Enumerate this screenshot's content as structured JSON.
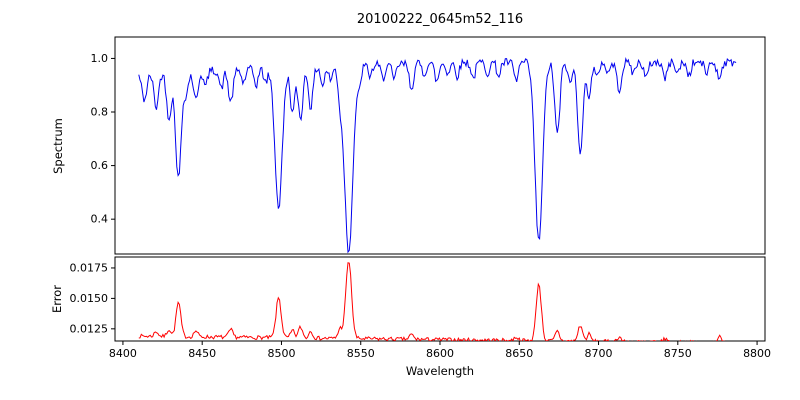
{
  "figure": {
    "title": "20100222_0645m52_116",
    "background": "#ffffff"
  },
  "x_axis": {
    "label": "Wavelength",
    "ticks": [
      8400,
      8450,
      8500,
      8550,
      8600,
      8650,
      8700,
      8750,
      8800
    ],
    "xlim": [
      8395,
      8805
    ]
  },
  "chart_data": [
    {
      "type": "line",
      "name": "spectrum",
      "ylabel": "Spectrum",
      "line_color": "#0000ee",
      "xlim": [
        8395,
        8805
      ],
      "x_range": [
        8410,
        8787
      ],
      "ylim": [
        0.27,
        1.08
      ],
      "yticks": [
        1.0,
        0.8,
        0.6,
        0.4
      ],
      "ytick_labels": [
        "1.0",
        "0.8",
        "0.6",
        "0.4"
      ],
      "grid": false,
      "legend": "none",
      "continuum": {
        "start": 0.945,
        "slope_per_angstrom": 0.0002,
        "max": 0.985
      },
      "noise_amplitude": 0.016,
      "sample_step": 0.8,
      "seed": 42,
      "absorption_lines": [
        {
          "c": 8413.5,
          "d": 0.1,
          "w": 1.6
        },
        {
          "c": 8421.0,
          "d": 0.13,
          "w": 1.5
        },
        {
          "c": 8429.0,
          "d": 0.17,
          "w": 1.5
        },
        {
          "c": 8435.0,
          "d": 0.4,
          "w": 1.8
        },
        {
          "c": 8440.0,
          "d": 0.08,
          "w": 1.3
        },
        {
          "c": 8446.0,
          "d": 0.11,
          "w": 1.4
        },
        {
          "c": 8452.0,
          "d": 0.06,
          "w": 1.2
        },
        {
          "c": 8462.0,
          "d": 0.07,
          "w": 1.2
        },
        {
          "c": 8468.0,
          "d": 0.12,
          "w": 1.5
        },
        {
          "c": 8476.0,
          "d": 0.05,
          "w": 1.2
        },
        {
          "c": 8484.0,
          "d": 0.06,
          "w": 1.2
        },
        {
          "c": 8490.0,
          "d": 0.05,
          "w": 1.2
        },
        {
          "c": 8498.2,
          "d": 0.52,
          "w": 2.3
        },
        {
          "c": 8507.0,
          "d": 0.17,
          "w": 1.4
        },
        {
          "c": 8512.0,
          "d": 0.19,
          "w": 1.5
        },
        {
          "c": 8518.5,
          "d": 0.15,
          "w": 1.4
        },
        {
          "c": 8526.0,
          "d": 0.07,
          "w": 1.2
        },
        {
          "c": 8531.0,
          "d": 0.05,
          "w": 1.2
        },
        {
          "c": 8537.0,
          "d": 0.1,
          "w": 1.3
        },
        {
          "c": 8542.4,
          "d": 0.69,
          "w": 2.6
        },
        {
          "c": 8549.0,
          "d": 0.07,
          "w": 1.2
        },
        {
          "c": 8556.0,
          "d": 0.04,
          "w": 1.2
        },
        {
          "c": 8564.0,
          "d": 0.05,
          "w": 1.2
        },
        {
          "c": 8571.0,
          "d": 0.06,
          "w": 1.2
        },
        {
          "c": 8582.0,
          "d": 0.09,
          "w": 1.4
        },
        {
          "c": 8590.0,
          "d": 0.04,
          "w": 1.2
        },
        {
          "c": 8598.0,
          "d": 0.07,
          "w": 1.3
        },
        {
          "c": 8605.0,
          "d": 0.04,
          "w": 1.2
        },
        {
          "c": 8611.0,
          "d": 0.05,
          "w": 1.2
        },
        {
          "c": 8621.0,
          "d": 0.06,
          "w": 1.3
        },
        {
          "c": 8630.0,
          "d": 0.04,
          "w": 1.2
        },
        {
          "c": 8637.0,
          "d": 0.05,
          "w": 1.2
        },
        {
          "c": 8648.0,
          "d": 0.07,
          "w": 1.3
        },
        {
          "c": 8662.3,
          "d": 0.67,
          "w": 2.4
        },
        {
          "c": 8674.0,
          "d": 0.27,
          "w": 1.6
        },
        {
          "c": 8682.0,
          "d": 0.08,
          "w": 1.3
        },
        {
          "c": 8688.5,
          "d": 0.33,
          "w": 1.7
        },
        {
          "c": 8694.0,
          "d": 0.12,
          "w": 1.4
        },
        {
          "c": 8699.0,
          "d": 0.06,
          "w": 1.2
        },
        {
          "c": 8706.0,
          "d": 0.04,
          "w": 1.2
        },
        {
          "c": 8713.0,
          "d": 0.1,
          "w": 1.5
        },
        {
          "c": 8722.0,
          "d": 0.04,
          "w": 1.2
        },
        {
          "c": 8730.0,
          "d": 0.06,
          "w": 1.3
        },
        {
          "c": 8742.0,
          "d": 0.06,
          "w": 1.3
        },
        {
          "c": 8750.0,
          "d": 0.04,
          "w": 1.2
        },
        {
          "c": 8757.0,
          "d": 0.05,
          "w": 1.2
        },
        {
          "c": 8768.0,
          "d": 0.04,
          "w": 1.2
        },
        {
          "c": 8776.0,
          "d": 0.06,
          "w": 1.3
        }
      ]
    },
    {
      "type": "line",
      "name": "error",
      "ylabel": "Error",
      "line_color": "#ff0000",
      "xlim": [
        8395,
        8805
      ],
      "x_range": [
        8410,
        8787
      ],
      "ylim": [
        0.0115,
        0.0184
      ],
      "yticks": [
        0.0175,
        0.015,
        0.0125
      ],
      "ytick_labels": [
        "0.0175",
        "0.0150",
        "0.0125"
      ],
      "grid": false,
      "legend": "none",
      "baseline": {
        "start": 0.0119,
        "slope_per_angstrom": -1.5e-06
      },
      "noise_amplitude": 0.00016,
      "sample_step": 0.8,
      "seed": 7,
      "peaks": [
        {
          "c": 8421.0,
          "h": 0.0004,
          "w": 1.2
        },
        {
          "c": 8429.0,
          "h": 0.0006,
          "w": 1.2
        },
        {
          "c": 8435.0,
          "h": 0.0028,
          "w": 1.5
        },
        {
          "c": 8446.0,
          "h": 0.0005,
          "w": 1.2
        },
        {
          "c": 8468.0,
          "h": 0.0006,
          "w": 1.3
        },
        {
          "c": 8498.2,
          "h": 0.0033,
          "w": 1.6
        },
        {
          "c": 8507.0,
          "h": 0.0006,
          "w": 1.2
        },
        {
          "c": 8512.0,
          "h": 0.0009,
          "w": 1.3
        },
        {
          "c": 8518.5,
          "h": 0.0006,
          "w": 1.2
        },
        {
          "c": 8537.0,
          "h": 0.0008,
          "w": 1.3
        },
        {
          "c": 8542.4,
          "h": 0.0064,
          "w": 1.8
        },
        {
          "c": 8582.0,
          "h": 0.0004,
          "w": 1.2
        },
        {
          "c": 8648.0,
          "h": 0.0003,
          "w": 1.2
        },
        {
          "c": 8662.3,
          "h": 0.0047,
          "w": 1.6
        },
        {
          "c": 8674.0,
          "h": 0.0008,
          "w": 1.3
        },
        {
          "c": 8688.5,
          "h": 0.0013,
          "w": 1.4
        },
        {
          "c": 8694.0,
          "h": 0.0006,
          "w": 1.2
        },
        {
          "c": 8713.0,
          "h": 0.0004,
          "w": 1.3
        },
        {
          "c": 8742.0,
          "h": 0.0003,
          "w": 1.2
        },
        {
          "c": 8776.0,
          "h": 0.0005,
          "w": 1.3
        }
      ]
    }
  ]
}
